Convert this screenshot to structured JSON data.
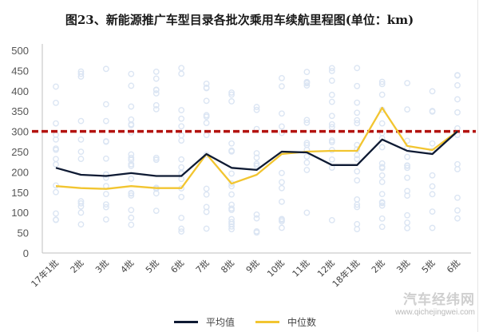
{
  "header": {
    "title": "图23、新能源推广车型目录各批次乘用车续航里程图(单位：km)"
  },
  "watermark": {
    "name": "汽车经纬网",
    "url": "www.qichejingwei.com"
  },
  "legend": {
    "items": [
      {
        "label": "平均值",
        "color": "#0e1a33"
      },
      {
        "label": "中位数",
        "color": "#f2c530"
      }
    ]
  },
  "colors": {
    "mean": "#0e1a33",
    "median": "#f2c530",
    "reference": "#b3120f",
    "scatter": "#dbe5f3",
    "axis": "#bfbfbf"
  },
  "chart_data": {
    "type": "line",
    "title": "图23、新能源推广车型目录各批次乘用车续航里程图(单位：km)",
    "xlabel": "",
    "ylabel": "",
    "ylim": [
      0,
      500
    ],
    "yticks": [
      0,
      50,
      100,
      150,
      200,
      250,
      300,
      350,
      400,
      450,
      500
    ],
    "grid": false,
    "legend_position": "bottom",
    "categories": [
      "17年1批",
      "2批",
      "3批",
      "4批",
      "5批",
      "6批",
      "7批",
      "8批",
      "9批",
      "10批",
      "11批",
      "12批",
      "18年1批",
      "2批",
      "3批",
      "5批",
      "6批"
    ],
    "series": [
      {
        "name": "平均值",
        "values": [
          210,
          193,
          190,
          197,
          190,
          190,
          244,
          210,
          205,
          250,
          248,
          217,
          217,
          280,
          252,
          244,
          300
        ]
      },
      {
        "name": "中位数",
        "values": [
          165,
          160,
          158,
          165,
          160,
          160,
          244,
          171,
          193,
          244,
          250,
          252,
          252,
          358,
          264,
          254,
          300
        ]
      }
    ],
    "reference_line": {
      "value": 300,
      "style": "dashed",
      "color": "#b3120f"
    },
    "annotations": [
      "Faint scatter of individual model ranges (light blue circles) behind lines"
    ]
  }
}
